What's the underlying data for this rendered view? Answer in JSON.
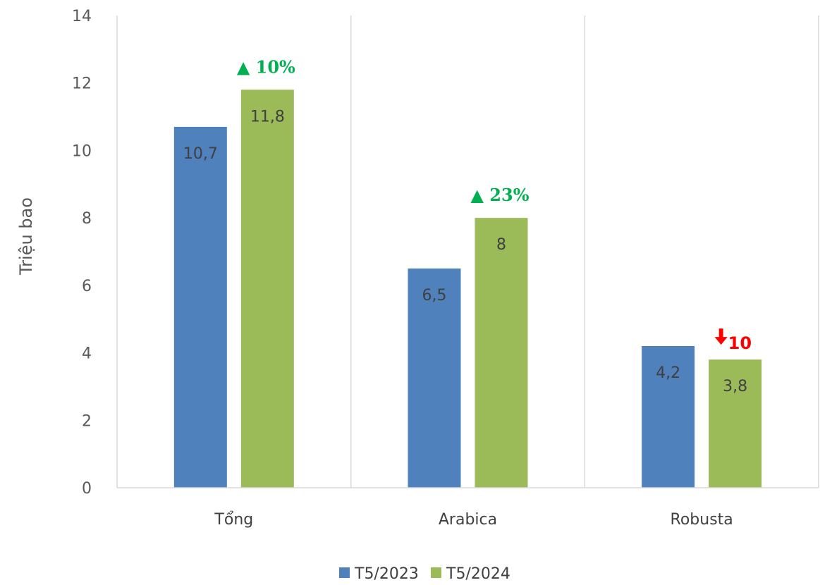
{
  "chart_data": {
    "type": "bar",
    "ylabel": "Triệu bao",
    "ylim": [
      0,
      14
    ],
    "yticks": [
      "0",
      "2",
      "4",
      "6",
      "8",
      "10",
      "12",
      "14"
    ],
    "categories": [
      "Tổng",
      "Arabica",
      "Robusta"
    ],
    "series": [
      {
        "name": "T5/2023",
        "color": "#4f81bd",
        "values": [
          10.7,
          6.5,
          4.2
        ],
        "labels": [
          "10,7",
          "6,5",
          "4,2"
        ]
      },
      {
        "name": "T5/2024",
        "color": "#9bbb59",
        "values": [
          11.8,
          8,
          3.8
        ],
        "labels": [
          "11,8",
          "8",
          "3,8"
        ]
      }
    ],
    "annotations": [
      {
        "category": "Tổng",
        "text": "▲ 10%",
        "direction": "up",
        "color": "#00b050"
      },
      {
        "category": "Arabica",
        "text": "▲ 23%",
        "direction": "up",
        "color": "#00b050"
      },
      {
        "category": "Robusta",
        "text": "10",
        "direction": "down",
        "color": "#ff0000"
      }
    ],
    "grid": "vertical-separators",
    "legend": "bottom"
  }
}
